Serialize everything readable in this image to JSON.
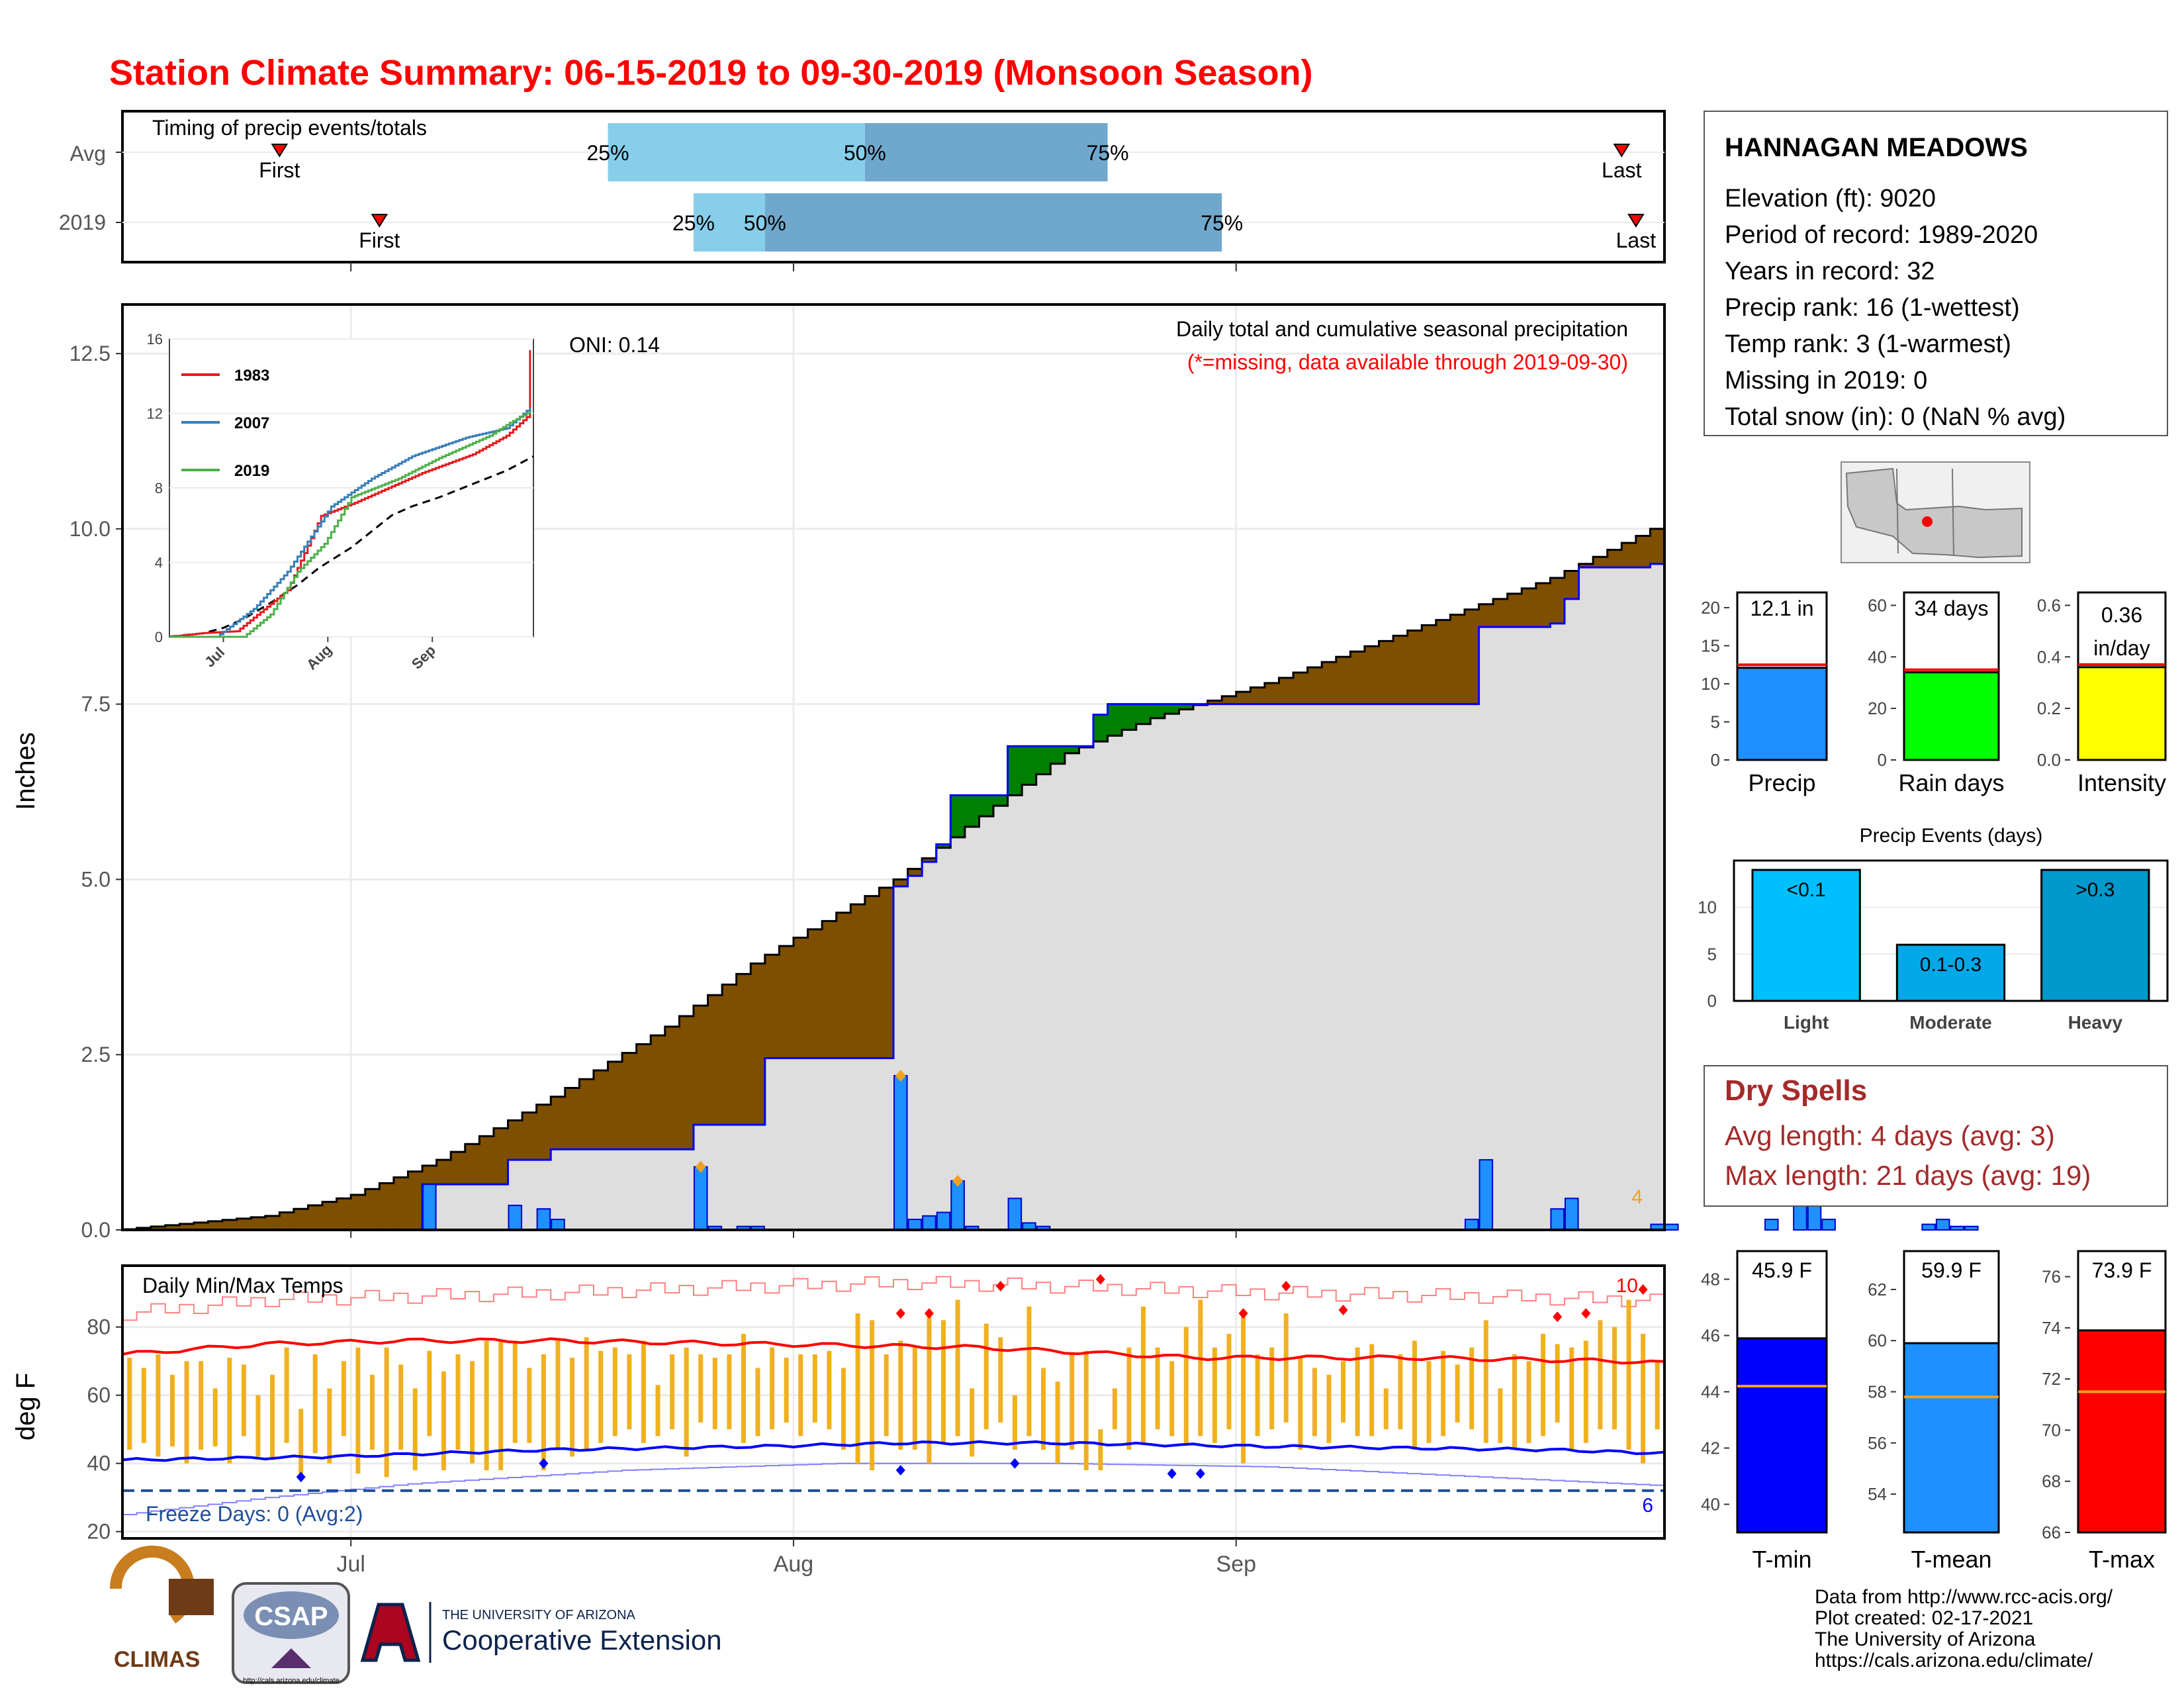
{
  "page": {
    "title": "Station Climate Summary: 06-15-2019 to 09-30-2019 (Monsoon Season)",
    "colors": {
      "title": "#ff0000",
      "wet": "#008000",
      "dry": "#7f4f00",
      "normal_fill": "#dedede",
      "bars": "#1e90ff",
      "tmax": "#ff0000",
      "tmin": "#0000ff",
      "range": "#f0b020"
    }
  },
  "timing": {
    "label": "Timing of precip events/totals",
    "rows": [
      {
        "name": "Avg",
        "first": "First",
        "last": "Last",
        "p25": "25%",
        "p50": "50%",
        "p75": "75%",
        "first_date": "2019-06-26",
        "last_date": "2019-09-28",
        "p25_date": "2019-07-19",
        "p50_date": "2019-08-06",
        "p75_date": "2019-08-23"
      },
      {
        "name": "2019",
        "first": "First",
        "last": "Last",
        "p25": "25%",
        "p50": "50%",
        "p75": "75%",
        "first_date": "2019-07-03",
        "last_date": "2019-09-29",
        "p25_date": "2019-07-25",
        "p50_date": "2019-07-30",
        "p75_date": "2019-08-31"
      }
    ]
  },
  "chart_data": [
    {
      "type": "area",
      "title": "Daily total and cumulative seasonal precipitation",
      "subtitle": "(*=missing, data available through 2019-09-30)",
      "oni": "ONI: 0.14",
      "ylabel": "Inches",
      "ylim": [
        0,
        13.2
      ],
      "yticks": [
        "0.0",
        "2.5",
        "5.0",
        "7.5",
        "10.0",
        "12.5"
      ],
      "xticks": [
        "Jul",
        "Aug",
        "Sep"
      ],
      "count_label": "4",
      "cumulative_normal_knots": [
        [
          0,
          0.01
        ],
        [
          10,
          0.2
        ],
        [
          16,
          0.5
        ],
        [
          22,
          1.0
        ],
        [
          30,
          1.9
        ],
        [
          38,
          2.9
        ],
        [
          44,
          3.8
        ],
        [
          46,
          4.05
        ],
        [
          54,
          5.0
        ],
        [
          62,
          6.2
        ],
        [
          66,
          6.8
        ],
        [
          72,
          7.3
        ],
        [
          80,
          7.8
        ],
        [
          92,
          8.7
        ],
        [
          100,
          9.3
        ],
        [
          110,
          10.3
        ],
        [
          120,
          11.0
        ],
        [
          130,
          11.6
        ],
        [
          138,
          12.0
        ]
      ],
      "cumulative_2019_steps": [
        [
          0,
          0.0
        ],
        [
          20,
          0.0
        ],
        [
          21,
          0.65
        ],
        [
          26,
          0.65
        ],
        [
          27,
          1.0
        ],
        [
          29,
          1.0
        ],
        [
          30,
          1.15
        ],
        [
          39,
          1.15
        ],
        [
          40,
          1.5
        ],
        [
          44,
          1.5
        ],
        [
          45,
          2.45
        ],
        [
          53,
          2.45
        ],
        [
          54,
          4.9
        ],
        [
          55,
          5.05
        ],
        [
          56,
          5.25
        ],
        [
          57,
          5.5
        ],
        [
          58,
          6.2
        ],
        [
          61,
          6.2
        ],
        [
          62,
          6.9
        ],
        [
          67,
          6.9
        ],
        [
          68,
          7.35
        ],
        [
          69,
          7.5
        ],
        [
          94,
          7.5
        ],
        [
          95,
          8.6
        ],
        [
          100,
          8.65
        ],
        [
          101,
          9.0
        ],
        [
          102,
          9.45
        ],
        [
          106,
          9.45
        ],
        [
          107,
          9.5
        ],
        [
          115,
          9.6
        ],
        [
          116,
          10.3
        ],
        [
          117,
          11.05
        ],
        [
          126,
          11.05
        ],
        [
          127,
          11.3
        ],
        [
          129,
          11.35
        ],
        [
          130,
          11.7
        ],
        [
          133,
          11.9
        ],
        [
          134,
          12.1
        ],
        [
          139,
          12.1
        ]
      ],
      "daily_precip": [
        [
          21,
          0.65
        ],
        [
          27,
          0.35
        ],
        [
          29,
          0.3
        ],
        [
          30,
          0.15
        ],
        [
          40,
          0.9
        ],
        [
          41,
          0.05
        ],
        [
          43,
          0.05
        ],
        [
          44,
          0.05
        ],
        [
          54,
          2.2
        ],
        [
          55,
          0.15
        ],
        [
          56,
          0.2
        ],
        [
          57,
          0.25
        ],
        [
          58,
          0.7
        ],
        [
          59,
          0.05
        ],
        [
          62,
          0.45
        ],
        [
          63,
          0.1
        ],
        [
          64,
          0.05
        ],
        [
          94,
          0.15
        ],
        [
          95,
          1.0
        ],
        [
          100,
          0.3
        ],
        [
          101,
          0.45
        ],
        [
          107,
          0.08
        ],
        [
          108,
          0.08
        ],
        [
          115,
          0.15
        ],
        [
          117,
          0.65
        ],
        [
          118,
          0.7
        ],
        [
          119,
          0.15
        ],
        [
          126,
          0.08
        ],
        [
          127,
          0.15
        ],
        [
          128,
          0.05
        ],
        [
          129,
          0.05
        ]
      ],
      "daily_markers": [
        [
          40,
          0.9
        ],
        [
          54,
          2.2
        ],
        [
          58,
          0.7
        ],
        [
          117,
          0.7
        ]
      ]
    },
    {
      "type": "line",
      "title": "Daily Min/Max Temps",
      "ylabel": "deg F",
      "ylim": [
        18,
        98
      ],
      "yticks": [
        "20",
        "40",
        "60",
        "80"
      ],
      "xticks": [
        "Jul",
        "Aug",
        "Sep"
      ],
      "freeze_label": "Freeze Days: 0 (Avg:2)",
      "freeze_line": 32,
      "max_count_label": "10",
      "min_count_label": "6",
      "tmax_avg_knots": [
        [
          0,
          72
        ],
        [
          10,
          75
        ],
        [
          20,
          76
        ],
        [
          30,
          76
        ],
        [
          45,
          75
        ],
        [
          60,
          74
        ],
        [
          75,
          71
        ],
        [
          90,
          71
        ],
        [
          105,
          70
        ],
        [
          115,
          68
        ],
        [
          125,
          66
        ],
        [
          138,
          65
        ]
      ],
      "tmin_avg_knots": [
        [
          0,
          41
        ],
        [
          15,
          42
        ],
        [
          30,
          44
        ],
        [
          45,
          45
        ],
        [
          55,
          46
        ],
        [
          65,
          46
        ],
        [
          80,
          45
        ],
        [
          100,
          44
        ],
        [
          115,
          42
        ],
        [
          125,
          38
        ],
        [
          138,
          37
        ]
      ],
      "tmax_record_knots": [
        [
          0,
          84
        ],
        [
          10,
          88
        ],
        [
          20,
          89
        ],
        [
          30,
          90
        ],
        [
          45,
          92
        ],
        [
          55,
          93
        ],
        [
          65,
          92
        ],
        [
          80,
          90
        ],
        [
          95,
          89
        ],
        [
          105,
          88
        ],
        [
          115,
          86
        ],
        [
          125,
          84
        ],
        [
          138,
          82
        ]
      ],
      "tmin_record_knots": [
        [
          0,
          27
        ],
        [
          10,
          32
        ],
        [
          20,
          36
        ],
        [
          35,
          40
        ],
        [
          50,
          42
        ],
        [
          65,
          42
        ],
        [
          80,
          41
        ],
        [
          95,
          38
        ],
        [
          110,
          35
        ],
        [
          120,
          30
        ],
        [
          130,
          26
        ],
        [
          138,
          24
        ]
      ],
      "tmax_2019": [
        71,
        68,
        72,
        66,
        70,
        70,
        62,
        71,
        69,
        60,
        66,
        74,
        56,
        72,
        62,
        70,
        74,
        66,
        74,
        69,
        62,
        73,
        67,
        72,
        70,
        76,
        76,
        76,
        68,
        72,
        76,
        71,
        77,
        73,
        74,
        72,
        76,
        63,
        72,
        74,
        72,
        71,
        72,
        78,
        68,
        74,
        71,
        72,
        72,
        73,
        68,
        84,
        82,
        72,
        76,
        74,
        84,
        82,
        88,
        62,
        81,
        77,
        60,
        86,
        68,
        64,
        72,
        73,
        50,
        62,
        74,
        86,
        74,
        70,
        80,
        88,
        74,
        78,
        85,
        72,
        74,
        84,
        71,
        68,
        66,
        70,
        74,
        75,
        62,
        72,
        76,
        70,
        73,
        69,
        74,
        82,
        62,
        72,
        70,
        78,
        75,
        74,
        76,
        82,
        80,
        88,
        78,
        70,
        71,
        72,
        69,
        64,
        70,
        68,
        68,
        64,
        62,
        70,
        72,
        68,
        68,
        66,
        64,
        73,
        74,
        72,
        68,
        66,
        68,
        66,
        66,
        62,
        65,
        62,
        60,
        62,
        62,
        62
      ],
      "tmin_2019": [
        44,
        46,
        42,
        45,
        40,
        44,
        45,
        40,
        48,
        42,
        41,
        46,
        37,
        43,
        40,
        48,
        37,
        44,
        36,
        44,
        38,
        48,
        38,
        44,
        40,
        38,
        38,
        46,
        46,
        38,
        44,
        42,
        44,
        46,
        48,
        50,
        46,
        48,
        50,
        42,
        52,
        50,
        50,
        46,
        48,
        50,
        52,
        48,
        52,
        50,
        44,
        40,
        38,
        48,
        44,
        44,
        40,
        46,
        48,
        42,
        50,
        52,
        44,
        48,
        44,
        40,
        44,
        38,
        38,
        50,
        44,
        46,
        50,
        48,
        46,
        48,
        46,
        50,
        40,
        48,
        50,
        52,
        44,
        48,
        46,
        52,
        48,
        48,
        50,
        50,
        44,
        46,
        48,
        52,
        50,
        46,
        46,
        44,
        46,
        48,
        52,
        44,
        46,
        50,
        50,
        44,
        40,
        50,
        48,
        46,
        46,
        48,
        44,
        48,
        50,
        46,
        48,
        46,
        44,
        50,
        48,
        44,
        48,
        44,
        46,
        44,
        46,
        48,
        50,
        48,
        46,
        48,
        46,
        44,
        46,
        44,
        36,
        36
      ],
      "max_markers": [
        [
          54,
          84
        ],
        [
          56,
          84
        ],
        [
          61,
          92
        ],
        [
          68,
          94
        ],
        [
          78,
          84
        ],
        [
          81,
          92
        ],
        [
          85,
          85
        ],
        [
          100,
          83
        ],
        [
          102,
          84
        ],
        [
          106,
          91
        ]
      ],
      "min_markers": [
        [
          12,
          36
        ],
        [
          29,
          40
        ],
        [
          54,
          38
        ],
        [
          62,
          40
        ],
        [
          73,
          37
        ],
        [
          75,
          37
        ]
      ]
    }
  ],
  "station": {
    "name": "HANNAGAN MEADOWS",
    "lines": [
      "Elevation (ft): 9020",
      "Period of record: 1989-2020",
      "Years in record: 32",
      "Precip rank: 16 (1-wettest)",
      "Temp rank: 3 (1-warmest)",
      "Missing in 2019: 0",
      "Total snow (in): 0 (NaN % avg)"
    ]
  },
  "inset": {
    "series": [
      {
        "name": "1983",
        "color": "#e41a1c"
      },
      {
        "name": "2007",
        "color": "#377eb8"
      },
      {
        "name": "2019",
        "color": "#4daf4a"
      }
    ],
    "xticks": [
      "Jul",
      "Aug",
      "Sep"
    ],
    "yticks": [
      "0",
      "4",
      "8",
      "12",
      "16"
    ],
    "ylim": [
      0,
      16
    ]
  },
  "summary_bars": [
    {
      "xlabel": "Precip",
      "label": "12.1 in",
      "value": 12.1,
      "avg": 12.5,
      "ylim": [
        0,
        22
      ],
      "yticks": [
        "0",
        "5",
        "10",
        "15",
        "20"
      ],
      "tickvals": [
        0,
        5,
        10,
        15,
        20
      ],
      "color": "#1e90ff"
    },
    {
      "xlabel": "Rain days",
      "label": "34 days",
      "value": 34,
      "avg": 35,
      "ylim": [
        0,
        65
      ],
      "yticks": [
        "0",
        "20",
        "40",
        "60"
      ],
      "tickvals": [
        0,
        20,
        40,
        60
      ],
      "color": "#00ff00"
    },
    {
      "xlabel": "Intensity",
      "label_line1": "0.36",
      "label_line2": "in/day",
      "value": 0.36,
      "avg": 0.37,
      "ylim": [
        0,
        0.65
      ],
      "yticks": [
        "0.0",
        "0.2",
        "0.4",
        "0.6"
      ],
      "tickvals": [
        0,
        0.2,
        0.4,
        0.6
      ],
      "color": "#ffff00"
    }
  ],
  "precip_events": {
    "title": "Precip Events (days)",
    "categories": [
      "Light",
      "Moderate",
      "Heavy"
    ],
    "labels": [
      "<0.1",
      "0.1-0.3",
      ">0.3"
    ],
    "values": [
      14,
      6,
      14
    ],
    "ylim": [
      0,
      15
    ],
    "yticks": [
      "0",
      "5",
      "10"
    ],
    "colors": [
      "#00bfff",
      "#00a8e8",
      "#0099cc"
    ]
  },
  "dry_spells": {
    "title": "Dry Spells",
    "avg_line": "Avg length: 4 days (avg: 3)",
    "max_line": "Max length: 21 days (avg: 19)"
  },
  "temp_bars": [
    {
      "xlabel": "T-min",
      "label": "45.9 F",
      "value": 45.9,
      "avg": 44.2,
      "ylim": [
        39,
        49
      ],
      "yticks": [
        "40",
        "42",
        "44",
        "46",
        "48"
      ],
      "tickvals": [
        40,
        42,
        44,
        46,
        48
      ],
      "color": "#0000ff"
    },
    {
      "xlabel": "T-mean",
      "label": "59.9 F",
      "value": 59.9,
      "avg": 57.8,
      "ylim": [
        52.5,
        63.5
      ],
      "yticks": [
        "54",
        "56",
        "58",
        "60",
        "62"
      ],
      "tickvals": [
        54,
        56,
        58,
        60,
        62
      ],
      "color": "#1e90ff"
    },
    {
      "xlabel": "T-max",
      "label": "73.9 F",
      "value": 73.9,
      "avg": 71.5,
      "ylim": [
        66,
        77
      ],
      "yticks": [
        "66",
        "68",
        "70",
        "72",
        "74",
        "76"
      ],
      "tickvals": [
        66,
        68,
        70,
        72,
        74,
        76
      ],
      "color": "#ff0000"
    }
  ],
  "credits": [
    "Data from http://www.rcc-acis.org/",
    "Plot created: 02-17-2021",
    "The University of Arizona",
    "https://cals.arizona.edu/climate/"
  ],
  "logos": {
    "climas": "CLIMAS",
    "csap": "CSAP",
    "csap_url": "http://cals.arizona.edu/climate",
    "ua_small": "THE UNIVERSITY OF ARIZONA",
    "ua_big": "Cooperative Extension"
  }
}
